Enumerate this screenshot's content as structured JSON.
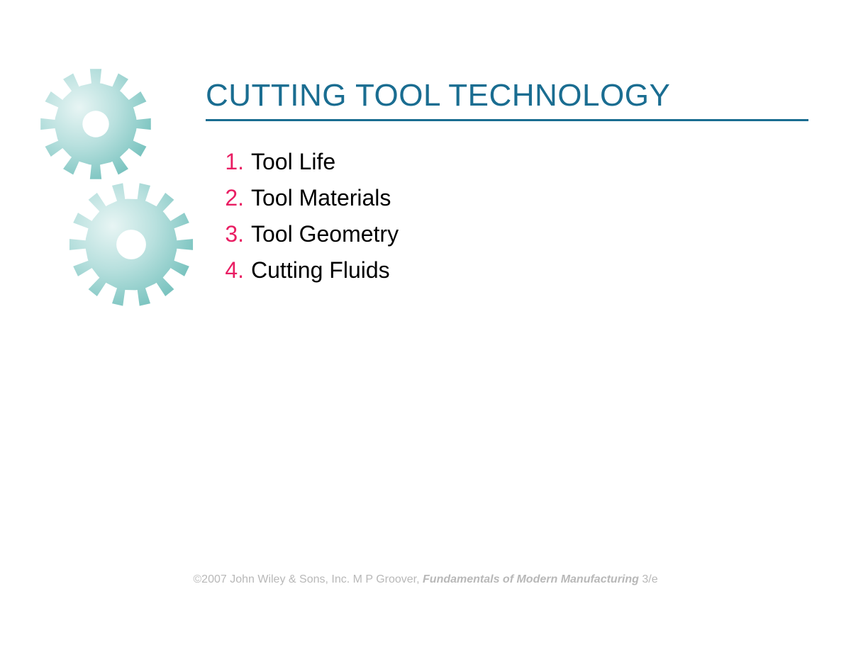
{
  "title": {
    "text": "CUTTING TOOL TECHNOLOGY",
    "color": "#1a6d91",
    "underline_color": "#1a6d91"
  },
  "list": {
    "number_color": "#e91e63",
    "text_color": "#000000",
    "items": [
      {
        "number": "1.",
        "text": "Tool Life"
      },
      {
        "number": "2.",
        "text": "Tool Materials"
      },
      {
        "number": "3.",
        "text": "Tool Geometry"
      },
      {
        "number": "4.",
        "text": "Cutting Fluids"
      }
    ]
  },
  "footer": {
    "color": "#b8b8b8",
    "prefix": "©2007 John Wiley & Sons, Inc.  M P Groover, ",
    "bold": "Fundamentals of Modern Manufacturing ",
    "suffix": "3/e"
  },
  "gears": {
    "gradient_light": "#d4edec",
    "gradient_dark": "#7bc4c0",
    "gear1_size": 170,
    "gear1_teeth": 12,
    "gear2_size": 190,
    "gear2_teeth": 14
  }
}
